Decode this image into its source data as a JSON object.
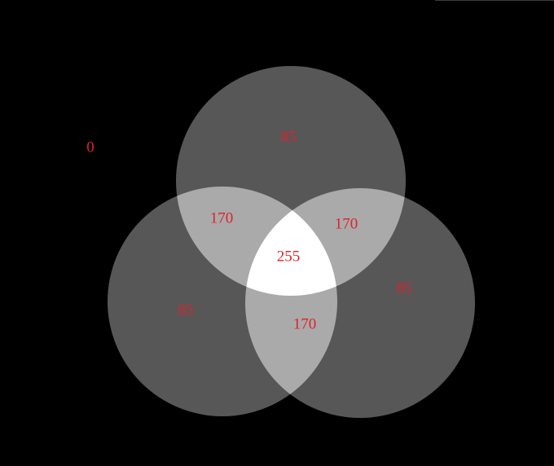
{
  "colors": {
    "background": "#000000",
    "label": "#e0202a",
    "overlap_1": "#575757",
    "overlap_2": "#aaaaaa",
    "overlap_3": "#ffffff"
  },
  "labels": {
    "outside": "0",
    "top_only": "85",
    "left_only": "85",
    "right_only": "85",
    "top_left": "170",
    "top_right": "170",
    "left_right": "170",
    "center": "255"
  }
}
